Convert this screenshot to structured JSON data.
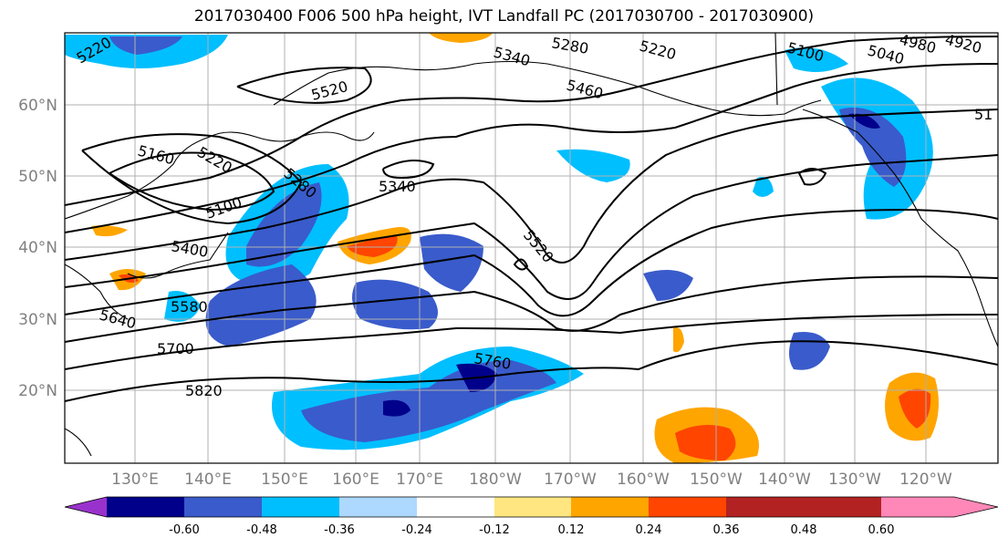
{
  "title": "2017030400 F006 500 hPa height, IVT Landfall PC (2017030700 - 2017030900)",
  "lat_labels": [
    "60°N",
    "50°N",
    "40°N",
    "30°N",
    "20°N"
  ],
  "lon_labels": [
    "130°E",
    "140°E",
    "150°E",
    "160°E",
    "170°E",
    "180°W",
    "170°W",
    "160°W",
    "150°W",
    "140°W",
    "130°W",
    "120°W"
  ],
  "colorbar": {
    "colors": [
      "#9932CC",
      "#00008B",
      "#3A5BCB",
      "#00BFFF",
      "#ADD8FF",
      "#FFFFFF",
      "#FFE680",
      "#FFA500",
      "#FF4500",
      "#B22222",
      "#FF88B8"
    ],
    "tick_labels": [
      "-0.60",
      "-0.48",
      "-0.36",
      "-0.24",
      "-0.12",
      "0.12",
      "0.24",
      "0.36",
      "0.48",
      "0.60"
    ]
  },
  "contour_labels": [
    "5220",
    "5340",
    "5280",
    "5220",
    "5100",
    "4980",
    "4920",
    "5040",
    "5460",
    "5520",
    "5160",
    "5220",
    "5280",
    "5340",
    "5100",
    "5400",
    "5580",
    "5640",
    "5700",
    "5820",
    "5760",
    "5520",
    "51"
  ]
}
